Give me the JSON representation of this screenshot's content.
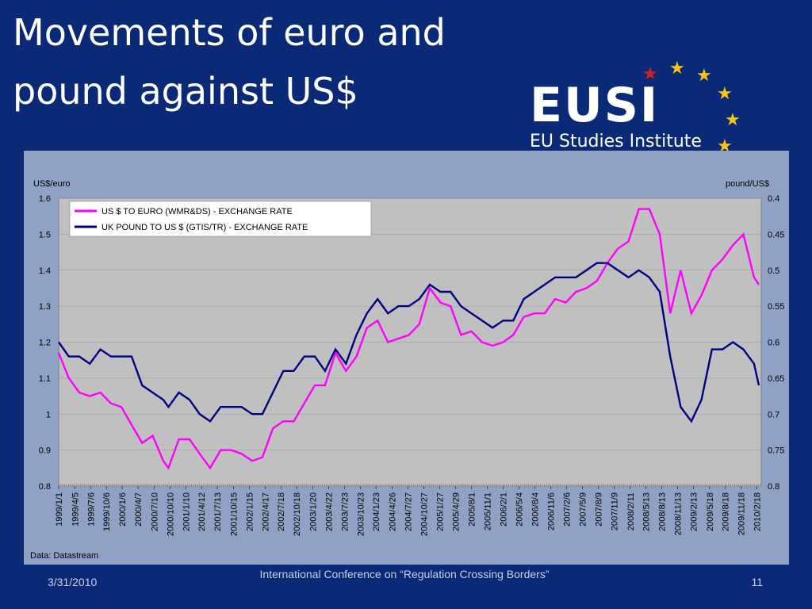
{
  "slide": {
    "title": "Movements of euro and pound against US$",
    "footer_date": "3/31/2010",
    "footer_center": "International Conference on “Regulation Crossing Borders”",
    "page_number": "11"
  },
  "logo": {
    "word": "EUSI",
    "subtitle": "EU Studies Institute",
    "colors": {
      "star": "#f5c518",
      "star_red": "#d42020"
    }
  },
  "colors": {
    "background": "#0a2a78",
    "plot_area": "#c0c0c0",
    "euro_series": "#ff00ff",
    "pound_series": "#000080"
  },
  "chart_data": {
    "type": "line",
    "title": "",
    "source_note": "Data: Datastream",
    "ylabel_left": "US$/euro",
    "ylabel_right": "pound/US$",
    "ylim_left": [
      0.8,
      1.6
    ],
    "ylim_right_inverted": [
      0.4,
      0.8
    ],
    "yticks_left": [
      "1.6",
      "1.5",
      "1.4",
      "1.3",
      "1.2",
      "1.1",
      "1",
      "0.9",
      "0.8"
    ],
    "yticks_right": [
      "0.4",
      "0.45",
      "0.5",
      "0.55",
      "0.6",
      "0.65",
      "0.7",
      "0.75",
      "0.8"
    ],
    "legend_position": "top-left",
    "x_tick_labels": [
      "1999/1/1",
      "1999/4/5",
      "1999/7/6",
      "1999/10/6",
      "2000/1/6",
      "2000/4/7",
      "2000/7/10",
      "2000/10/10",
      "2001/1/10",
      "2001/4/12",
      "2001/7/13",
      "2001/10/15",
      "2002/1/15",
      "2002/4/17",
      "2002/7/18",
      "2002/10/18",
      "2003/1/20",
      "2003/4/22",
      "2003/7/23",
      "2003/10/23",
      "2004/1/23",
      "2004/4/26",
      "2004/7/27",
      "2004/10/27",
      "2005/1/27",
      "2005/4/29",
      "2005/8/1",
      "2005/11/1",
      "2006/2/1",
      "2006/5/4",
      "2006/8/4",
      "2006/11/6",
      "2007/2/6",
      "2007/5/9",
      "2007/8/9",
      "2007/11/9",
      "2008/2/11",
      "2008/5/13",
      "2008/8/13",
      "2008/11/13",
      "2009/2/13",
      "2009/5/18",
      "2009/8/18",
      "2009/11/18",
      "2010/2/18"
    ],
    "series": [
      {
        "name": "US $ TO EURO (WMR&DS) - EXCHANGE RATE",
        "axis": "left",
        "x": [
          "1999/1",
          "1999/3",
          "1999/5",
          "1999/7",
          "1999/9",
          "1999/11",
          "2000/1",
          "2000/3",
          "2000/5",
          "2000/7",
          "2000/9",
          "2000/10",
          "2000/12",
          "2001/2",
          "2001/4",
          "2001/6",
          "2001/8",
          "2001/10",
          "2001/12",
          "2002/2",
          "2002/4",
          "2002/6",
          "2002/8",
          "2002/10",
          "2002/12",
          "2003/2",
          "2003/4",
          "2003/6",
          "2003/8",
          "2003/10",
          "2003/12",
          "2004/2",
          "2004/4",
          "2004/6",
          "2004/8",
          "2004/10",
          "2004/12",
          "2005/2",
          "2005/4",
          "2005/6",
          "2005/8",
          "2005/10",
          "2005/12",
          "2006/2",
          "2006/4",
          "2006/6",
          "2006/8",
          "2006/10",
          "2006/12",
          "2007/2",
          "2007/4",
          "2007/6",
          "2007/8",
          "2007/10",
          "2007/12",
          "2008/2",
          "2008/4",
          "2008/6",
          "2008/8",
          "2008/10",
          "2008/12",
          "2009/2",
          "2009/4",
          "2009/6",
          "2009/8",
          "2009/10",
          "2009/12",
          "2010/2",
          "2010/3"
        ],
        "y": [
          1.17,
          1.1,
          1.06,
          1.05,
          1.06,
          1.03,
          1.02,
          0.97,
          0.92,
          0.94,
          0.87,
          0.85,
          0.93,
          0.93,
          0.89,
          0.85,
          0.9,
          0.9,
          0.89,
          0.87,
          0.88,
          0.96,
          0.98,
          0.98,
          1.03,
          1.08,
          1.08,
          1.17,
          1.12,
          1.16,
          1.24,
          1.26,
          1.2,
          1.21,
          1.22,
          1.25,
          1.35,
          1.31,
          1.3,
          1.22,
          1.23,
          1.2,
          1.19,
          1.2,
          1.22,
          1.27,
          1.28,
          1.28,
          1.32,
          1.31,
          1.34,
          1.35,
          1.37,
          1.42,
          1.46,
          1.48,
          1.57,
          1.57,
          1.5,
          1.28,
          1.4,
          1.28,
          1.33,
          1.4,
          1.43,
          1.47,
          1.5,
          1.38,
          1.36
        ]
      },
      {
        "name": "UK POUND TO US $ (GTIS/TR) - EXCHANGE RATE",
        "axis": "right",
        "x": [
          "1999/1",
          "1999/3",
          "1999/5",
          "1999/7",
          "1999/9",
          "1999/11",
          "2000/1",
          "2000/3",
          "2000/5",
          "2000/7",
          "2000/9",
          "2000/10",
          "2000/12",
          "2001/2",
          "2001/4",
          "2001/6",
          "2001/8",
          "2001/10",
          "2001/12",
          "2002/2",
          "2002/4",
          "2002/6",
          "2002/8",
          "2002/10",
          "2002/12",
          "2003/2",
          "2003/4",
          "2003/6",
          "2003/8",
          "2003/10",
          "2003/12",
          "2004/2",
          "2004/4",
          "2004/6",
          "2004/8",
          "2004/10",
          "2004/12",
          "2005/2",
          "2005/4",
          "2005/6",
          "2005/8",
          "2005/10",
          "2005/12",
          "2006/2",
          "2006/4",
          "2006/6",
          "2006/8",
          "2006/10",
          "2006/12",
          "2007/2",
          "2007/4",
          "2007/6",
          "2007/8",
          "2007/10",
          "2007/12",
          "2008/2",
          "2008/4",
          "2008/6",
          "2008/8",
          "2008/10",
          "2008/12",
          "2009/2",
          "2009/4",
          "2009/6",
          "2009/8",
          "2009/10",
          "2009/12",
          "2010/2",
          "2010/3"
        ],
        "y": [
          0.6,
          0.62,
          0.62,
          0.63,
          0.61,
          0.62,
          0.62,
          0.62,
          0.66,
          0.67,
          0.68,
          0.69,
          0.67,
          0.68,
          0.7,
          0.71,
          0.69,
          0.69,
          0.69,
          0.7,
          0.7,
          0.67,
          0.64,
          0.64,
          0.62,
          0.62,
          0.64,
          0.61,
          0.63,
          0.59,
          0.56,
          0.54,
          0.56,
          0.55,
          0.55,
          0.54,
          0.52,
          0.53,
          0.53,
          0.55,
          0.56,
          0.57,
          0.58,
          0.57,
          0.57,
          0.54,
          0.53,
          0.52,
          0.51,
          0.51,
          0.51,
          0.5,
          0.49,
          0.49,
          0.5,
          0.51,
          0.5,
          0.51,
          0.53,
          0.62,
          0.69,
          0.71,
          0.68,
          0.61,
          0.61,
          0.6,
          0.61,
          0.63,
          0.66
        ]
      }
    ]
  }
}
